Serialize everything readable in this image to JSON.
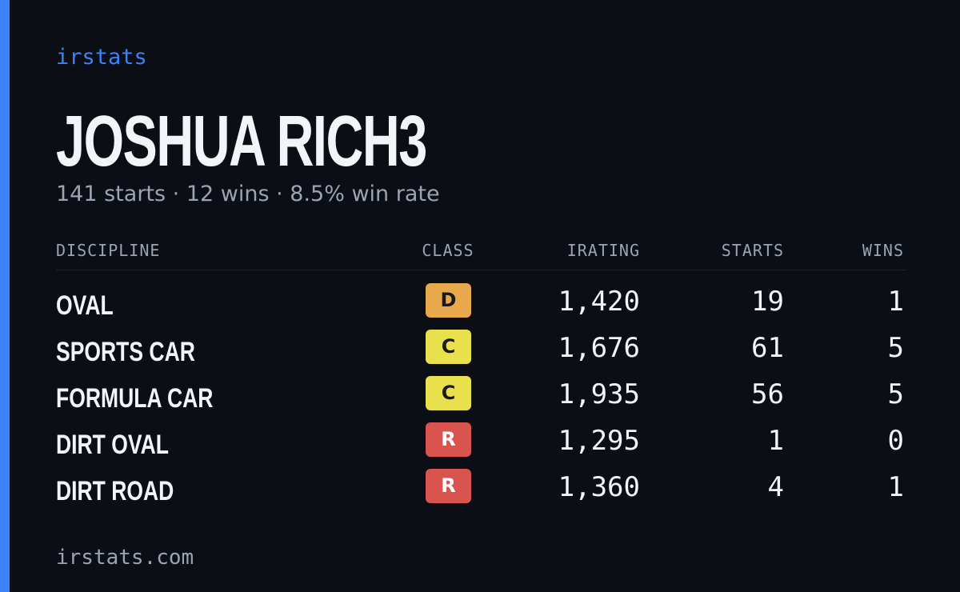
{
  "header": {
    "brand": "irstats",
    "title": "JOSHUA RICH3",
    "subtitle": "141 starts · 12 wins · 8.5% win rate"
  },
  "table": {
    "columns": [
      "DISCIPLINE",
      "CLASS",
      "IRATING",
      "STARTS",
      "WINS"
    ],
    "rows": [
      [
        "OVAL",
        "D",
        "1,420",
        "19",
        "1"
      ],
      [
        "SPORTS CAR",
        "C",
        "1,676",
        "61",
        "5"
      ],
      [
        "FORMULA CAR",
        "C",
        "1,935",
        "56",
        "5"
      ],
      [
        "DIRT OVAL",
        "R",
        "1,295",
        "1",
        "0"
      ],
      [
        "DIRT ROAD",
        "R",
        "1,360",
        "4",
        "1"
      ]
    ],
    "class_colors": {
      "D": "#e8a84c",
      "C": "#e8e04c",
      "R": "#d9534f"
    }
  },
  "footer": {
    "url": "irstats.com"
  }
}
